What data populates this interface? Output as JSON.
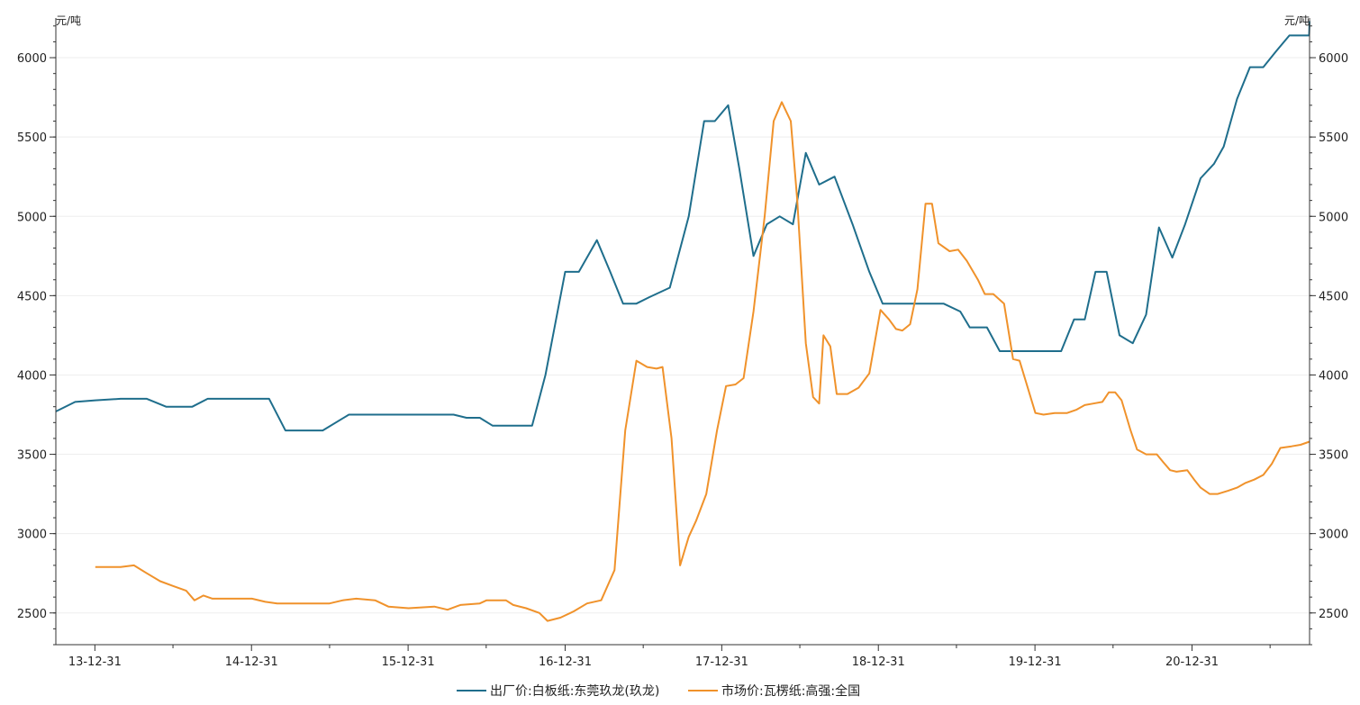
{
  "chart_data": {
    "type": "line",
    "title": "",
    "xlabel": "",
    "ylabel_left": "元/吨",
    "ylabel_right": "元/吨",
    "ylim": [
      2300,
      6250
    ],
    "xlim": [
      "2013-10-01",
      "2021-10-01"
    ],
    "grid": true,
    "legend_position": "bottom",
    "y_ticks": [
      2500,
      3000,
      3500,
      4000,
      4500,
      5000,
      5500,
      6000
    ],
    "x_ticks": [
      {
        "date": "2013-12-31",
        "label": "13-12-31"
      },
      {
        "date": "2014-12-31",
        "label": "14-12-31"
      },
      {
        "date": "2015-12-31",
        "label": "15-12-31"
      },
      {
        "date": "2016-12-31",
        "label": "16-12-31"
      },
      {
        "date": "2017-12-31",
        "label": "17-12-31"
      },
      {
        "date": "2018-12-31",
        "label": "18-12-31"
      },
      {
        "date": "2019-12-31",
        "label": "19-12-31"
      },
      {
        "date": "2020-12-31",
        "label": "20-12-31"
      }
    ],
    "series": [
      {
        "name": "出厂价:白板纸:东莞玖龙(玖龙)",
        "color": "#1f6e8c",
        "points": [
          [
            "2013-10-01",
            3770
          ],
          [
            "2013-11-15",
            3830
          ],
          [
            "2014-01-01",
            3840
          ],
          [
            "2014-03-01",
            3850
          ],
          [
            "2014-05-01",
            3850
          ],
          [
            "2014-06-15",
            3800
          ],
          [
            "2014-08-15",
            3800
          ],
          [
            "2014-09-20",
            3850
          ],
          [
            "2014-11-15",
            3850
          ],
          [
            "2015-02-10",
            3850
          ],
          [
            "2015-03-20",
            3650
          ],
          [
            "2015-06-15",
            3650
          ],
          [
            "2015-08-15",
            3750
          ],
          [
            "2015-11-01",
            3750
          ],
          [
            "2016-02-01",
            3750
          ],
          [
            "2016-04-15",
            3750
          ],
          [
            "2016-05-15",
            3730
          ],
          [
            "2016-06-15",
            3730
          ],
          [
            "2016-07-15",
            3680
          ],
          [
            "2016-09-01",
            3680
          ],
          [
            "2016-10-15",
            3680
          ],
          [
            "2016-11-15",
            4000
          ],
          [
            "2016-12-31",
            4650
          ],
          [
            "2017-02-01",
            4650
          ],
          [
            "2017-03-15",
            4850
          ],
          [
            "2017-04-15",
            4650
          ],
          [
            "2017-05-15",
            4450
          ],
          [
            "2017-06-15",
            4450
          ],
          [
            "2017-07-15",
            4490
          ],
          [
            "2017-09-01",
            4550
          ],
          [
            "2017-10-15",
            5000
          ],
          [
            "2017-11-20",
            5600
          ],
          [
            "2017-12-15",
            5600
          ],
          [
            "2018-01-15",
            5700
          ],
          [
            "2018-02-10",
            5300
          ],
          [
            "2018-03-15",
            4750
          ],
          [
            "2018-04-15",
            4950
          ],
          [
            "2018-05-15",
            5000
          ],
          [
            "2018-06-15",
            4950
          ],
          [
            "2018-07-15",
            5400
          ],
          [
            "2018-08-15",
            5200
          ],
          [
            "2018-09-20",
            5250
          ],
          [
            "2018-11-01",
            4950
          ],
          [
            "2018-12-10",
            4650
          ],
          [
            "2019-01-10",
            4450
          ],
          [
            "2019-03-01",
            4450
          ],
          [
            "2019-05-01",
            4450
          ],
          [
            "2019-06-01",
            4450
          ],
          [
            "2019-07-10",
            4400
          ],
          [
            "2019-08-01",
            4300
          ],
          [
            "2019-09-10",
            4300
          ],
          [
            "2019-10-10",
            4150
          ],
          [
            "2019-11-15",
            4150
          ],
          [
            "2020-01-01",
            4150
          ],
          [
            "2020-03-01",
            4150
          ],
          [
            "2020-03-31",
            4350
          ],
          [
            "2020-04-25",
            4350
          ],
          [
            "2020-05-20",
            4650
          ],
          [
            "2020-06-15",
            4650
          ],
          [
            "2020-07-15",
            4250
          ],
          [
            "2020-08-15",
            4200
          ],
          [
            "2020-09-15",
            4380
          ],
          [
            "2020-10-15",
            4930
          ],
          [
            "2020-11-15",
            4740
          ],
          [
            "2020-12-15",
            4950
          ],
          [
            "2021-01-20",
            5240
          ],
          [
            "2021-02-20",
            5330
          ],
          [
            "2021-03-15",
            5440
          ],
          [
            "2021-04-15",
            5740
          ],
          [
            "2021-05-15",
            5940
          ],
          [
            "2021-06-15",
            5940
          ],
          [
            "2021-07-15",
            6040
          ],
          [
            "2021-08-15",
            6140
          ],
          [
            "2021-09-15",
            6140
          ],
          [
            "2021-09-30",
            6140
          ],
          [
            "2021-10-01",
            6230
          ]
        ]
      },
      {
        "name": "市场价:瓦楞纸:高强:全国",
        "color": "#f0922b",
        "points": [
          [
            "2014-01-01",
            2790
          ],
          [
            "2014-03-01",
            2790
          ],
          [
            "2014-04-01",
            2800
          ],
          [
            "2014-05-01",
            2750
          ],
          [
            "2014-06-01",
            2700
          ],
          [
            "2014-07-01",
            2670
          ],
          [
            "2014-08-01",
            2640
          ],
          [
            "2014-08-20",
            2580
          ],
          [
            "2014-09-10",
            2610
          ],
          [
            "2014-10-01",
            2590
          ],
          [
            "2014-11-15",
            2590
          ],
          [
            "2015-01-01",
            2590
          ],
          [
            "2015-02-01",
            2570
          ],
          [
            "2015-03-01",
            2560
          ],
          [
            "2015-05-01",
            2560
          ],
          [
            "2015-07-01",
            2560
          ],
          [
            "2015-08-01",
            2580
          ],
          [
            "2015-09-01",
            2590
          ],
          [
            "2015-10-15",
            2580
          ],
          [
            "2015-11-15",
            2540
          ],
          [
            "2016-01-01",
            2530
          ],
          [
            "2016-03-01",
            2540
          ],
          [
            "2016-04-01",
            2520
          ],
          [
            "2016-05-01",
            2550
          ],
          [
            "2016-06-15",
            2560
          ],
          [
            "2016-07-01",
            2580
          ],
          [
            "2016-08-15",
            2580
          ],
          [
            "2016-09-01",
            2550
          ],
          [
            "2016-10-01",
            2530
          ],
          [
            "2016-11-01",
            2500
          ],
          [
            "2016-11-20",
            2450
          ],
          [
            "2016-12-20",
            2470
          ],
          [
            "2017-01-20",
            2510
          ],
          [
            "2017-02-20",
            2560
          ],
          [
            "2017-03-25",
            2580
          ],
          [
            "2017-04-25",
            2770
          ],
          [
            "2017-05-20",
            3650
          ],
          [
            "2017-06-15",
            4090
          ],
          [
            "2017-07-10",
            4050
          ],
          [
            "2017-08-01",
            4040
          ],
          [
            "2017-08-15",
            4050
          ],
          [
            "2017-09-05",
            3600
          ],
          [
            "2017-09-25",
            2800
          ],
          [
            "2017-10-15",
            2980
          ],
          [
            "2017-11-01",
            3080
          ],
          [
            "2017-11-25",
            3250
          ],
          [
            "2017-12-20",
            3650
          ],
          [
            "2018-01-10",
            3930
          ],
          [
            "2018-02-01",
            3940
          ],
          [
            "2018-02-20",
            3980
          ],
          [
            "2018-03-15",
            4400
          ],
          [
            "2018-04-10",
            5000
          ],
          [
            "2018-05-01",
            5600
          ],
          [
            "2018-05-20",
            5720
          ],
          [
            "2018-06-10",
            5600
          ],
          [
            "2018-06-25",
            5100
          ],
          [
            "2018-07-15",
            4200
          ],
          [
            "2018-08-01",
            3860
          ],
          [
            "2018-08-15",
            3820
          ],
          [
            "2018-08-25",
            4250
          ],
          [
            "2018-09-10",
            4180
          ],
          [
            "2018-09-25",
            3880
          ],
          [
            "2018-10-20",
            3880
          ],
          [
            "2018-11-15",
            3920
          ],
          [
            "2018-12-10",
            4010
          ],
          [
            "2019-01-05",
            4410
          ],
          [
            "2019-01-25",
            4350
          ],
          [
            "2019-02-10",
            4290
          ],
          [
            "2019-02-25",
            4280
          ],
          [
            "2019-03-15",
            4320
          ],
          [
            "2019-04-01",
            4540
          ],
          [
            "2019-04-20",
            5080
          ],
          [
            "2019-05-05",
            5080
          ],
          [
            "2019-05-20",
            4830
          ],
          [
            "2019-06-15",
            4780
          ],
          [
            "2019-07-05",
            4790
          ],
          [
            "2019-07-25",
            4720
          ],
          [
            "2019-08-20",
            4600
          ],
          [
            "2019-09-05",
            4510
          ],
          [
            "2019-09-25",
            4510
          ],
          [
            "2019-10-20",
            4450
          ],
          [
            "2019-11-10",
            4100
          ],
          [
            "2019-11-25",
            4090
          ],
          [
            "2020-01-01",
            3760
          ],
          [
            "2020-01-20",
            3750
          ],
          [
            "2020-02-15",
            3760
          ],
          [
            "2020-03-15",
            3760
          ],
          [
            "2020-04-05",
            3780
          ],
          [
            "2020-04-25",
            3810
          ],
          [
            "2020-05-15",
            3820
          ],
          [
            "2020-06-05",
            3830
          ],
          [
            "2020-06-20",
            3890
          ],
          [
            "2020-07-05",
            3890
          ],
          [
            "2020-07-20",
            3840
          ],
          [
            "2020-08-10",
            3650
          ],
          [
            "2020-08-25",
            3530
          ],
          [
            "2020-09-15",
            3500
          ],
          [
            "2020-10-10",
            3500
          ],
          [
            "2020-10-25",
            3450
          ],
          [
            "2020-11-10",
            3400
          ],
          [
            "2020-11-25",
            3390
          ],
          [
            "2020-12-20",
            3400
          ],
          [
            "2021-01-05",
            3340
          ],
          [
            "2021-01-20",
            3290
          ],
          [
            "2021-02-10",
            3250
          ],
          [
            "2021-03-01",
            3250
          ],
          [
            "2021-03-25",
            3270
          ],
          [
            "2021-04-15",
            3290
          ],
          [
            "2021-05-05",
            3320
          ],
          [
            "2021-05-25",
            3340
          ],
          [
            "2021-06-15",
            3370
          ],
          [
            "2021-07-05",
            3440
          ],
          [
            "2021-07-25",
            3540
          ],
          [
            "2021-08-20",
            3550
          ],
          [
            "2021-09-10",
            3560
          ],
          [
            "2021-10-01",
            3580
          ]
        ]
      }
    ]
  },
  "legend": {
    "items": [
      {
        "label": "出厂价:白板纸:东莞玖龙(玖龙)",
        "color": "#1f6e8c"
      },
      {
        "label": "市场价:瓦楞纸:高强:全国",
        "color": "#f0922b"
      }
    ]
  }
}
